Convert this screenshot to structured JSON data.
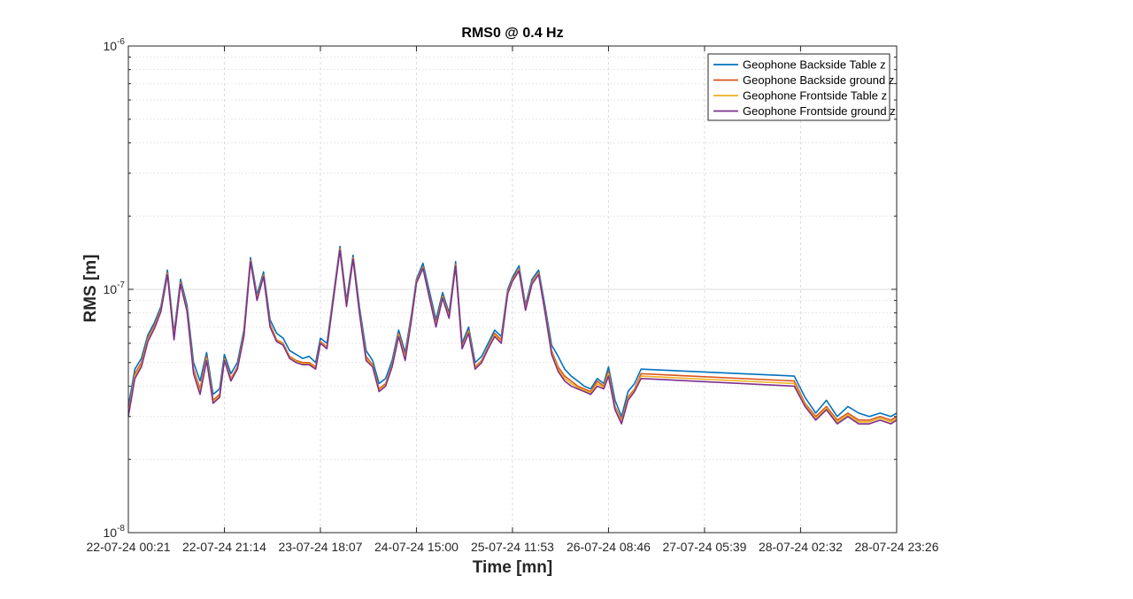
{
  "chart_data": {
    "type": "line",
    "title": "RMS0 @ 0.4 Hz",
    "xlabel": "Time [mn]",
    "ylabel": "RMS [m]",
    "yscale": "log",
    "ylim": [
      1e-08,
      1e-06
    ],
    "yticks": [
      {
        "value": 1e-08,
        "base": "10",
        "exp": "-8"
      },
      {
        "value": 1e-07,
        "base": "10",
        "exp": "-7"
      },
      {
        "value": 1e-06,
        "base": "10",
        "exp": "-6"
      }
    ],
    "xlim": [
      "2024-07-22 00:21",
      "2024-07-28 23:26"
    ],
    "xticks": [
      {
        "x": "2024-07-22 00:21",
        "label": "22-07-24  00:21"
      },
      {
        "x": "2024-07-22 21:14",
        "label": "22-07-24  21:14"
      },
      {
        "x": "2024-07-23 18:07",
        "label": "23-07-24  18:07"
      },
      {
        "x": "2024-07-24 15:00",
        "label": "24-07-24  15:00"
      },
      {
        "x": "2024-07-25 11:53",
        "label": "25-07-24  11:53"
      },
      {
        "x": "2024-07-26 08:46",
        "label": "26-07-24  08:46"
      },
      {
        "x": "2024-07-27 05:39",
        "label": "27-07-24  05:39"
      },
      {
        "x": "2024-07-28 02:32",
        "label": "28-07-24  02:32"
      },
      {
        "x": "2024-07-28 23:26",
        "label": "28-07-24  23:26"
      }
    ],
    "grid": true,
    "minor_grid": true,
    "legend_position": "top-right",
    "x": [
      "2024-07-22 00:21",
      "2024-07-22 01:46",
      "2024-07-22 03:11",
      "2024-07-22 04:36",
      "2024-07-22 06:01",
      "2024-07-22 07:26",
      "2024-07-22 08:51",
      "2024-07-22 10:17",
      "2024-07-22 11:42",
      "2024-07-22 13:07",
      "2024-07-22 14:32",
      "2024-07-22 15:57",
      "2024-07-22 17:22",
      "2024-07-22 18:47",
      "2024-07-22 20:12",
      "2024-07-22 21:14",
      "2024-07-22 22:39",
      "2024-07-23 00:04",
      "2024-07-23 01:29",
      "2024-07-23 02:55",
      "2024-07-23 04:20",
      "2024-07-23 05:45",
      "2024-07-23 07:10",
      "2024-07-23 08:35",
      "2024-07-23 10:00",
      "2024-07-23 11:25",
      "2024-07-23 12:50",
      "2024-07-23 14:15",
      "2024-07-23 15:40",
      "2024-07-23 17:05",
      "2024-07-23 18:07",
      "2024-07-23 19:32",
      "2024-07-23 20:57",
      "2024-07-23 22:22",
      "2024-07-23 23:48",
      "2024-07-24 01:13",
      "2024-07-24 02:38",
      "2024-07-24 04:03",
      "2024-07-24 05:28",
      "2024-07-24 06:53",
      "2024-07-24 08:18",
      "2024-07-24 09:43",
      "2024-07-24 11:08",
      "2024-07-24 12:33",
      "2024-07-24 13:58",
      "2024-07-24 15:00",
      "2024-07-24 16:25",
      "2024-07-24 17:50",
      "2024-07-24 19:15",
      "2024-07-24 20:41",
      "2024-07-24 22:06",
      "2024-07-24 23:31",
      "2024-07-25 00:56",
      "2024-07-25 02:21",
      "2024-07-25 03:46",
      "2024-07-25 05:11",
      "2024-07-25 06:36",
      "2024-07-25 08:01",
      "2024-07-25 09:26",
      "2024-07-25 10:51",
      "2024-07-25 11:53",
      "2024-07-25 13:18",
      "2024-07-25 14:43",
      "2024-07-25 16:08",
      "2024-07-25 17:34",
      "2024-07-25 18:59",
      "2024-07-25 20:24",
      "2024-07-25 21:49",
      "2024-07-25 23:14",
      "2024-07-26 00:39",
      "2024-07-26 02:04",
      "2024-07-26 03:29",
      "2024-07-26 04:54",
      "2024-07-26 06:19",
      "2024-07-26 07:44",
      "2024-07-26 08:46",
      "2024-07-26 10:11",
      "2024-07-26 11:36",
      "2024-07-26 13:01",
      "2024-07-26 14:26",
      "2024-07-26 15:51",
      "2024-07-28 01:10",
      "2024-07-28 03:30",
      "2024-07-28 05:50",
      "2024-07-28 08:10",
      "2024-07-28 10:30",
      "2024-07-28 12:50",
      "2024-07-28 15:10",
      "2024-07-28 17:30",
      "2024-07-28 19:50",
      "2024-07-28 22:10",
      "2024-07-28 23:26"
    ],
    "series": [
      {
        "name": "Geophone Backside Table z",
        "color": "#0072BD",
        "values": [
          3.3e-08,
          4.7e-08,
          5.2e-08,
          6.5e-08,
          7.3e-08,
          8.5e-08,
          1.2e-07,
          6.6e-08,
          1.1e-07,
          8.6e-08,
          5e-08,
          4.2e-08,
          5.5e-08,
          3.7e-08,
          3.9e-08,
          5.4e-08,
          4.5e-08,
          5e-08,
          6.8e-08,
          1.35e-07,
          9.5e-08,
          1.18e-07,
          7.5e-08,
          6.6e-08,
          6.3e-08,
          5.6e-08,
          5.4e-08,
          5.2e-08,
          5.3e-08,
          5e-08,
          6.3e-08,
          6e-08,
          9.5e-08,
          1.5e-07,
          9e-08,
          1.38e-07,
          8.4e-08,
          5.6e-08,
          5.1e-08,
          4.1e-08,
          4.3e-08,
          5.1e-08,
          6.8e-08,
          5.5e-08,
          8e-08,
          1.1e-07,
          1.28e-07,
          9.8e-08,
          7.5e-08,
          9.7e-08,
          8e-08,
          1.3e-07,
          6e-08,
          7e-08,
          5e-08,
          5.3e-08,
          6e-08,
          6.8e-08,
          6.4e-08,
          1e-07,
          1.12e-07,
          1.25e-07,
          8.6e-08,
          1.1e-07,
          1.2e-07,
          8.5e-08,
          5.9e-08,
          5.3e-08,
          4.7e-08,
          4.4e-08,
          4.2e-08,
          4e-08,
          3.9e-08,
          4.3e-08,
          4.1e-08,
          4.8e-08,
          3.5e-08,
          3e-08,
          3.8e-08,
          4.1e-08,
          4.7e-08,
          4.4e-08,
          3.6e-08,
          3.1e-08,
          3.5e-08,
          3e-08,
          3.3e-08,
          3.1e-08,
          3e-08,
          3.1e-08,
          3e-08,
          3.1e-08
        ]
      },
      {
        "name": "Geophone Backside ground z",
        "color": "#D95319",
        "values": [
          3.1e-08,
          4.5e-08,
          5e-08,
          6.3e-08,
          7.1e-08,
          8.3e-08,
          1.17e-07,
          6.4e-08,
          1.07e-07,
          8.3e-08,
          4.7e-08,
          3.9e-08,
          5.3e-08,
          3.5e-08,
          3.7e-08,
          5.2e-08,
          4.3e-08,
          4.8e-08,
          6.6e-08,
          1.32e-07,
          9.2e-08,
          1.15e-07,
          7.2e-08,
          6.2e-08,
          6e-08,
          5.3e-08,
          5.1e-08,
          5e-08,
          5e-08,
          4.8e-08,
          6.1e-08,
          5.8e-08,
          9.3e-08,
          1.47e-07,
          8.7e-08,
          1.35e-07,
          8.1e-08,
          5.3e-08,
          4.9e-08,
          3.9e-08,
          4.1e-08,
          4.9e-08,
          6.6e-08,
          5.3e-08,
          7.8e-08,
          1.08e-07,
          1.24e-07,
          9.4e-08,
          7.2e-08,
          9.4e-08,
          7.8e-08,
          1.27e-07,
          5.8e-08,
          6.8e-08,
          4.8e-08,
          5.1e-08,
          5.8e-08,
          6.6e-08,
          6.2e-08,
          9.8e-08,
          1.1e-07,
          1.21e-07,
          8.4e-08,
          1.07e-07,
          1.17e-07,
          8.2e-08,
          5.6e-08,
          4.8e-08,
          4.4e-08,
          4.2e-08,
          4e-08,
          3.9e-08,
          3.8e-08,
          4.2e-08,
          4e-08,
          4.6e-08,
          3.3e-08,
          2.9e-08,
          3.6e-08,
          3.9e-08,
          4.5e-08,
          4.2e-08,
          3.4e-08,
          3e-08,
          3.3e-08,
          2.9e-08,
          3.1e-08,
          2.9e-08,
          2.9e-08,
          3e-08,
          2.9e-08,
          3e-08
        ]
      },
      {
        "name": "Geophone Frontside Table z",
        "color": "#EDB120",
        "values": [
          3.05e-08,
          4.4e-08,
          4.9e-08,
          6.2e-08,
          7e-08,
          8.2e-08,
          1.16e-07,
          6.3e-08,
          1.06e-07,
          8.2e-08,
          4.6e-08,
          3.8e-08,
          5.2e-08,
          3.45e-08,
          3.65e-08,
          5.15e-08,
          4.25e-08,
          4.75e-08,
          6.5e-08,
          1.31e-07,
          9.1e-08,
          1.14e-07,
          7.1e-08,
          6.15e-08,
          5.95e-08,
          5.25e-08,
          5.05e-08,
          4.95e-08,
          4.95e-08,
          4.75e-08,
          6.05e-08,
          5.75e-08,
          9.2e-08,
          1.46e-07,
          8.6e-08,
          1.34e-07,
          8e-08,
          5.2e-08,
          4.85e-08,
          3.85e-08,
          4.05e-08,
          4.85e-08,
          6.5e-08,
          5.2e-08,
          7.7e-08,
          1.07e-07,
          1.23e-07,
          9.3e-08,
          7.1e-08,
          9.3e-08,
          7.7e-08,
          1.26e-07,
          5.75e-08,
          6.7e-08,
          4.75e-08,
          5.05e-08,
          5.75e-08,
          6.5e-08,
          6.1e-08,
          9.7e-08,
          1.09e-07,
          1.2e-07,
          8.3e-08,
          1.06e-07,
          1.16e-07,
          8.1e-08,
          5.5e-08,
          4.7e-08,
          4.3e-08,
          4.1e-08,
          3.95e-08,
          3.85e-08,
          3.75e-08,
          4.1e-08,
          3.95e-08,
          4.5e-08,
          3.25e-08,
          2.85e-08,
          3.55e-08,
          3.85e-08,
          4.4e-08,
          4.1e-08,
          3.35e-08,
          2.95e-08,
          3.25e-08,
          2.85e-08,
          3.05e-08,
          2.85e-08,
          2.85e-08,
          2.95e-08,
          2.85e-08,
          2.95e-08
        ]
      },
      {
        "name": "Geophone Frontside ground z",
        "color": "#7E2F8E",
        "values": [
          3e-08,
          4.3e-08,
          4.8e-08,
          6.1e-08,
          6.9e-08,
          8.1e-08,
          1.15e-07,
          6.2e-08,
          1.05e-07,
          8.1e-08,
          4.5e-08,
          3.7e-08,
          5.1e-08,
          3.4e-08,
          3.6e-08,
          5.1e-08,
          4.2e-08,
          4.7e-08,
          6.4e-08,
          1.3e-07,
          9e-08,
          1.13e-07,
          7e-08,
          6.1e-08,
          5.9e-08,
          5.2e-08,
          5e-08,
          4.9e-08,
          4.9e-08,
          4.7e-08,
          6e-08,
          5.7e-08,
          9.1e-08,
          1.45e-07,
          8.5e-08,
          1.33e-07,
          7.9e-08,
          5.1e-08,
          4.8e-08,
          3.8e-08,
          4e-08,
          4.8e-08,
          6.4e-08,
          5.1e-08,
          7.6e-08,
          1.06e-07,
          1.22e-07,
          9.2e-08,
          7e-08,
          9.2e-08,
          7.6e-08,
          1.25e-07,
          5.7e-08,
          6.6e-08,
          4.7e-08,
          5e-08,
          5.7e-08,
          6.4e-08,
          6e-08,
          9.6e-08,
          1.08e-07,
          1.19e-07,
          8.2e-08,
          1.05e-07,
          1.15e-07,
          8e-08,
          5.4e-08,
          4.6e-08,
          4.2e-08,
          4e-08,
          3.9e-08,
          3.8e-08,
          3.7e-08,
          4e-08,
          3.9e-08,
          4.4e-08,
          3.2e-08,
          2.8e-08,
          3.5e-08,
          3.8e-08,
          4.3e-08,
          4e-08,
          3.3e-08,
          2.9e-08,
          3.2e-08,
          2.8e-08,
          3e-08,
          2.8e-08,
          2.8e-08,
          2.9e-08,
          2.8e-08,
          2.9e-08
        ]
      }
    ]
  }
}
